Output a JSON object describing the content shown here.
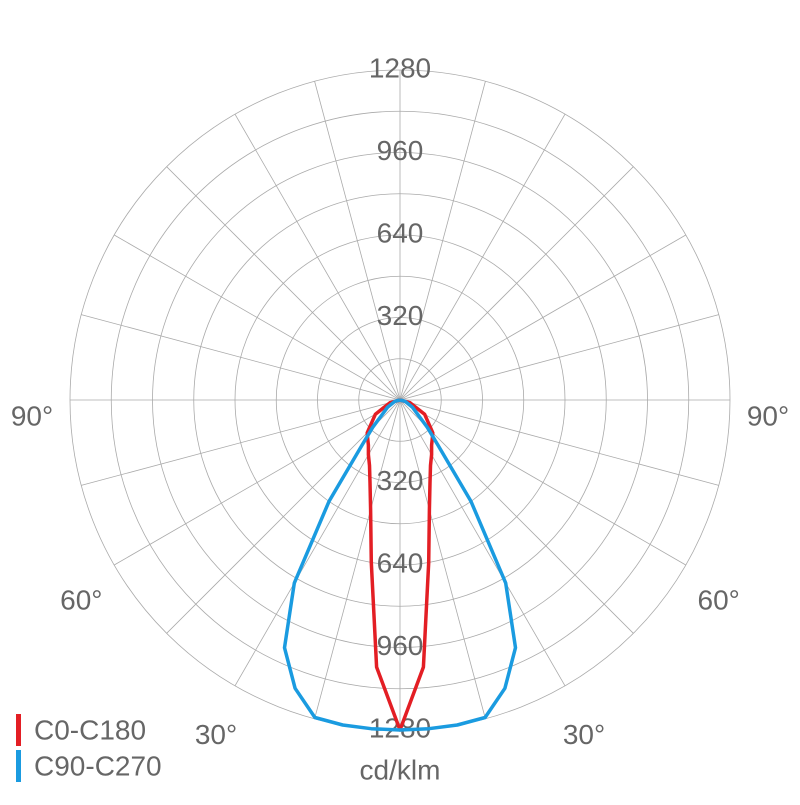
{
  "chart_data": {
    "type": "polar",
    "unit_label": "cd/klm",
    "rlim": [
      0,
      1280
    ],
    "rticks": [
      320,
      640,
      960,
      1280
    ],
    "rminor_ticks": [
      160,
      480,
      800,
      1120
    ],
    "angle_grid": [
      0,
      15,
      30,
      45,
      60,
      75,
      90,
      105,
      120,
      135,
      150,
      165
    ],
    "angle_ticks": [
      {
        "value": 90,
        "label": "90°"
      },
      {
        "value": 60,
        "label": "60°"
      },
      {
        "value": 30,
        "label": "30°"
      }
    ],
    "x": [
      -90,
      -75,
      -60,
      -45,
      -40,
      -35,
      -30,
      -25,
      -20,
      -15,
      -10,
      -5,
      0,
      5,
      10,
      15,
      20,
      25,
      30,
      35,
      40,
      45,
      60,
      75,
      90
    ],
    "series": [
      {
        "name": "C0-C180",
        "color": "#e31e24",
        "values": [
          0,
          40,
          110,
          180,
          195,
          214,
          245,
          280,
          340,
          440,
          640,
          1040,
          1280,
          1040,
          640,
          440,
          340,
          280,
          245,
          214,
          195,
          180,
          110,
          40,
          0
        ]
      },
      {
        "name": "C90-C270",
        "color": "#1a9be0",
        "values": [
          0,
          20,
          55,
          150,
          230,
          480,
          820,
          1060,
          1190,
          1275,
          1280,
          1280,
          1280,
          1280,
          1280,
          1275,
          1190,
          1060,
          820,
          480,
          230,
          150,
          55,
          20,
          0
        ]
      }
    ]
  }
}
